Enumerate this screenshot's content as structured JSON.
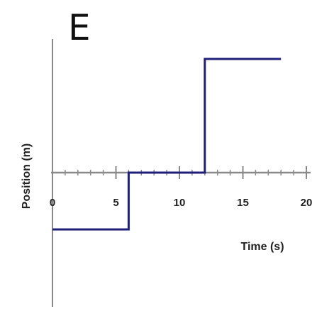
{
  "panel_label": "E",
  "chart_data": {
    "type": "line",
    "title": "",
    "xlabel": "Time (s)",
    "ylabel": "Position (m)",
    "xlim": [
      0,
      20
    ],
    "xticks": [
      0,
      5,
      10,
      15,
      20
    ],
    "xtick_labels": [
      "0",
      "5",
      "10",
      "15",
      "20"
    ],
    "x_minor_step": 1,
    "yticks_shown": false,
    "y_values_unlabeled": true,
    "grid": false,
    "legend": "none",
    "series": [
      {
        "color": "#1f1f7a",
        "x": [
          0,
          6,
          6,
          12,
          12,
          18
        ],
        "y": [
          -1,
          -1,
          0,
          0,
          2,
          2
        ]
      }
    ]
  }
}
